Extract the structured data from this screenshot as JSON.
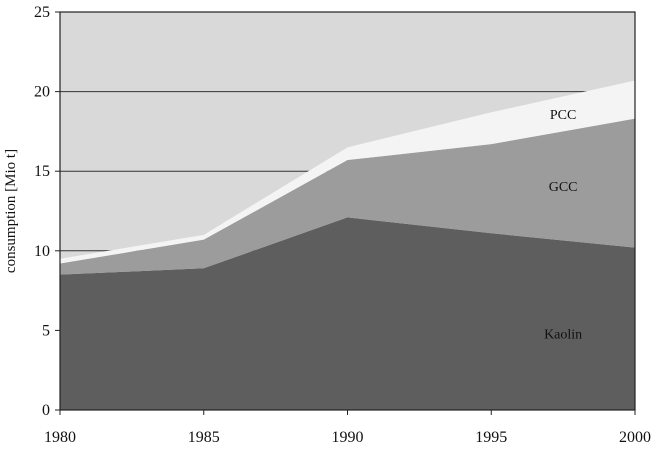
{
  "chart_data": {
    "type": "area",
    "stacked": true,
    "title": "",
    "xlabel": "",
    "ylabel": "consumption [Mio t]",
    "x": [
      1980,
      1985,
      1990,
      1995,
      2000
    ],
    "xlim": [
      1980,
      2000
    ],
    "ylim": [
      0,
      25
    ],
    "xticks": [
      "1980",
      "1985",
      "1990",
      "1995",
      "2000"
    ],
    "yticks": [
      "0",
      "5",
      "10",
      "15",
      "20",
      "25"
    ],
    "grid": false,
    "legend": "none",
    "series": [
      {
        "name": "Kaolin",
        "values": [
          8.5,
          8.9,
          12.1,
          11.1,
          10.2
        ],
        "color": "#5e5e5e"
      },
      {
        "name": "GCC",
        "values": [
          0.7,
          1.8,
          3.6,
          5.6,
          8.1
        ],
        "color": "#9c9c9c"
      },
      {
        "name": "PCC",
        "values": [
          0.3,
          0.3,
          0.8,
          2.0,
          2.4
        ],
        "color": "#f4f4f4"
      }
    ],
    "background_color": "#d9d9d9",
    "reference_lines": [
      20,
      15,
      10
    ]
  }
}
